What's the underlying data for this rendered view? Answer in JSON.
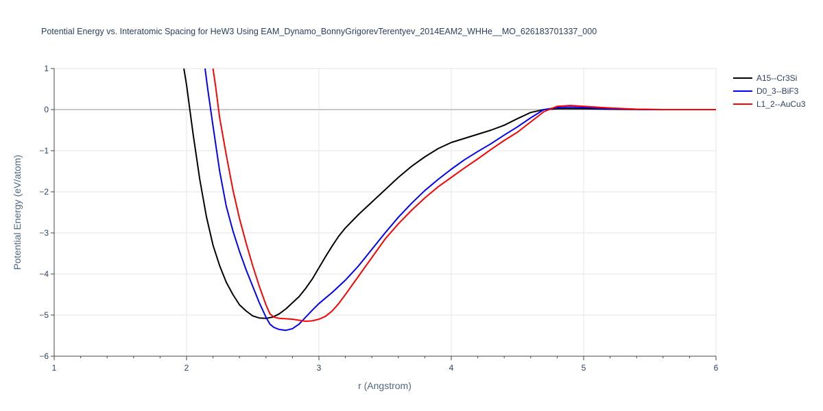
{
  "chart_data": {
    "type": "line",
    "title": "Potential Energy vs. Interatomic Spacing for HeW3 Using EAM_Dynamo_BonnyGrigorevTerentyev_2014EAM2_WHHe__MO_626183701337_000",
    "xlabel": "r (Angstrom)",
    "ylabel": "Potential Energy (eV/atom)",
    "xlim": [
      1,
      6
    ],
    "ylim": [
      -6,
      1
    ],
    "x_ticks": [
      "1",
      "2",
      "3",
      "4",
      "5",
      "6"
    ],
    "y_ticks": [
      "1",
      "0",
      "−1",
      "−2",
      "−3",
      "−4",
      "−5",
      "−6"
    ],
    "grid": true,
    "legend_position": "top-right",
    "series": [
      {
        "name": "A15--Cr3Si",
        "color": "#000000",
        "points": [
          [
            1.98,
            1.0
          ],
          [
            2.0,
            0.6
          ],
          [
            2.05,
            -0.6
          ],
          [
            2.1,
            -1.7
          ],
          [
            2.15,
            -2.6
          ],
          [
            2.2,
            -3.3
          ],
          [
            2.25,
            -3.8
          ],
          [
            2.3,
            -4.2
          ],
          [
            2.35,
            -4.5
          ],
          [
            2.4,
            -4.75
          ],
          [
            2.45,
            -4.9
          ],
          [
            2.5,
            -5.02
          ],
          [
            2.55,
            -5.07
          ],
          [
            2.6,
            -5.08
          ],
          [
            2.65,
            -5.05
          ],
          [
            2.7,
            -4.97
          ],
          [
            2.75,
            -4.85
          ],
          [
            2.8,
            -4.7
          ],
          [
            2.85,
            -4.55
          ],
          [
            2.9,
            -4.35
          ],
          [
            2.95,
            -4.12
          ],
          [
            3.0,
            -3.85
          ],
          [
            3.05,
            -3.58
          ],
          [
            3.1,
            -3.32
          ],
          [
            3.15,
            -3.08
          ],
          [
            3.2,
            -2.88
          ],
          [
            3.3,
            -2.55
          ],
          [
            3.4,
            -2.25
          ],
          [
            3.5,
            -1.95
          ],
          [
            3.6,
            -1.65
          ],
          [
            3.7,
            -1.38
          ],
          [
            3.8,
            -1.15
          ],
          [
            3.9,
            -0.95
          ],
          [
            4.0,
            -0.8
          ],
          [
            4.1,
            -0.7
          ],
          [
            4.2,
            -0.6
          ],
          [
            4.3,
            -0.5
          ],
          [
            4.4,
            -0.38
          ],
          [
            4.5,
            -0.22
          ],
          [
            4.6,
            -0.07
          ],
          [
            4.7,
            0.0
          ],
          [
            4.8,
            0.02
          ],
          [
            5.0,
            0.02
          ],
          [
            5.2,
            0.01
          ],
          [
            5.5,
            0.0
          ],
          [
            6.0,
            0.0
          ]
        ]
      },
      {
        "name": "D0_3--BiF3",
        "color": "#0000ff",
        "points": [
          [
            2.14,
            1.0
          ],
          [
            2.16,
            0.5
          ],
          [
            2.2,
            -0.4
          ],
          [
            2.25,
            -1.5
          ],
          [
            2.3,
            -2.35
          ],
          [
            2.35,
            -2.95
          ],
          [
            2.4,
            -3.45
          ],
          [
            2.45,
            -3.9
          ],
          [
            2.5,
            -4.3
          ],
          [
            2.55,
            -4.7
          ],
          [
            2.6,
            -5.05
          ],
          [
            2.63,
            -5.22
          ],
          [
            2.66,
            -5.3
          ],
          [
            2.7,
            -5.35
          ],
          [
            2.75,
            -5.37
          ],
          [
            2.8,
            -5.33
          ],
          [
            2.85,
            -5.22
          ],
          [
            2.9,
            -5.05
          ],
          [
            2.95,
            -4.88
          ],
          [
            3.0,
            -4.72
          ],
          [
            3.1,
            -4.45
          ],
          [
            3.2,
            -4.15
          ],
          [
            3.3,
            -3.8
          ],
          [
            3.4,
            -3.4
          ],
          [
            3.5,
            -3.0
          ],
          [
            3.6,
            -2.62
          ],
          [
            3.7,
            -2.28
          ],
          [
            3.8,
            -1.97
          ],
          [
            3.9,
            -1.7
          ],
          [
            4.0,
            -1.45
          ],
          [
            4.1,
            -1.22
          ],
          [
            4.2,
            -1.02
          ],
          [
            4.3,
            -0.83
          ],
          [
            4.4,
            -0.62
          ],
          [
            4.5,
            -0.42
          ],
          [
            4.6,
            -0.2
          ],
          [
            4.7,
            0.0
          ],
          [
            4.8,
            0.05
          ],
          [
            4.9,
            0.06
          ],
          [
            5.0,
            0.05
          ],
          [
            5.2,
            0.02
          ],
          [
            5.5,
            0.0
          ],
          [
            6.0,
            0.0
          ]
        ]
      },
      {
        "name": "L1_2--AuCu3",
        "color": "#ff0000",
        "points": [
          [
            2.2,
            1.0
          ],
          [
            2.22,
            0.55
          ],
          [
            2.25,
            -0.2
          ],
          [
            2.3,
            -1.1
          ],
          [
            2.35,
            -1.95
          ],
          [
            2.4,
            -2.65
          ],
          [
            2.45,
            -3.25
          ],
          [
            2.5,
            -3.8
          ],
          [
            2.55,
            -4.3
          ],
          [
            2.6,
            -4.75
          ],
          [
            2.63,
            -4.97
          ],
          [
            2.66,
            -5.05
          ],
          [
            2.7,
            -5.08
          ],
          [
            2.8,
            -5.1
          ],
          [
            2.9,
            -5.15
          ],
          [
            2.95,
            -5.14
          ],
          [
            3.0,
            -5.1
          ],
          [
            3.05,
            -5.03
          ],
          [
            3.1,
            -4.9
          ],
          [
            3.15,
            -4.72
          ],
          [
            3.2,
            -4.5
          ],
          [
            3.3,
            -4.05
          ],
          [
            3.4,
            -3.6
          ],
          [
            3.5,
            -3.15
          ],
          [
            3.6,
            -2.78
          ],
          [
            3.7,
            -2.45
          ],
          [
            3.8,
            -2.15
          ],
          [
            3.9,
            -1.88
          ],
          [
            4.0,
            -1.65
          ],
          [
            4.1,
            -1.42
          ],
          [
            4.2,
            -1.2
          ],
          [
            4.3,
            -0.97
          ],
          [
            4.4,
            -0.75
          ],
          [
            4.5,
            -0.55
          ],
          [
            4.6,
            -0.3
          ],
          [
            4.7,
            -0.05
          ],
          [
            4.8,
            0.08
          ],
          [
            4.9,
            0.1
          ],
          [
            5.0,
            0.08
          ],
          [
            5.2,
            0.04
          ],
          [
            5.4,
            0.01
          ],
          [
            5.6,
            0.0
          ],
          [
            6.0,
            0.0
          ]
        ]
      }
    ]
  }
}
